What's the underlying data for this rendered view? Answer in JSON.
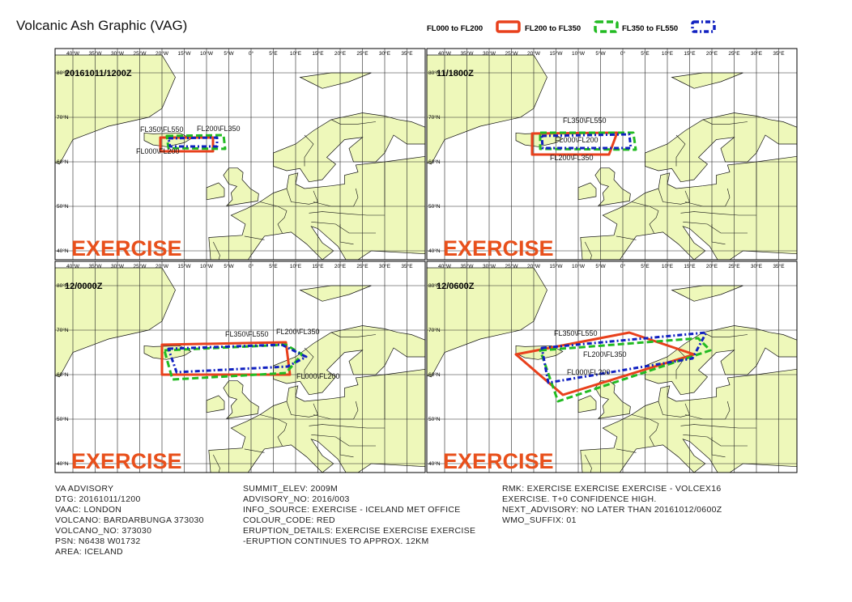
{
  "header": {
    "title": "Volcanic Ash Graphic (VAG)"
  },
  "legend": [
    {
      "label": "FL000 to FL200",
      "color": "#e8401c"
    },
    {
      "label": "FL200 to FL350",
      "color": "#22bb22"
    },
    {
      "label": "FL350 to FL550",
      "color": "#1020c0"
    }
  ],
  "grid": {
    "lon_labels": [
      "40°W",
      "35°W",
      "30°W",
      "25°W",
      "20°W",
      "15°W",
      "10°W",
      "5°W",
      "0°",
      "5°E",
      "10°E",
      "15°E",
      "20°E",
      "25°E",
      "30°E",
      "35°E"
    ],
    "lat_labels": [
      "80°N",
      "70°N",
      "60°N",
      "50°N",
      "40°N"
    ]
  },
  "panels": [
    {
      "time": "20161011/1200Z",
      "watermark": "EXERCISE",
      "labels": [
        "FL000\\FL200",
        "FL200\\FL350",
        "FL350\\FL550"
      ]
    },
    {
      "time": "11/1800Z",
      "watermark": "EXERCISE",
      "labels": [
        "FL000\\FL200",
        "FL200\\FL350",
        "FL350\\FL550"
      ]
    },
    {
      "time": "12/0000Z",
      "watermark": "EXERCISE",
      "labels": [
        "FL000\\FL200",
        "FL200\\FL350",
        "FL350\\FL550"
      ]
    },
    {
      "time": "12/0600Z",
      "watermark": "EXERCISE",
      "labels": [
        "FL000\\FL200",
        "FL200\\FL350",
        "FL350\\FL550"
      ]
    }
  ],
  "advisory": {
    "columns": [
      [
        "VA ADVISORY",
        "DTG: 20161011/1200",
        "VAAC: LONDON",
        "VOLCANO: BARDARBUNGA 373030",
        "VOLCANO_NO: 373030",
        "PSN: N6438 W01732",
        "AREA: ICELAND"
      ],
      [
        "SUMMIT_ELEV: 2009M",
        "ADVISORY_NO: 2016/003",
        "INFO_SOURCE: EXERCISE - ICELAND MET OFFICE",
        "COLOUR_CODE: RED",
        "ERUPTION_DETAILS: EXERCISE EXERCISE EXERCISE",
        "-ERUPTION CONTINUES TO APPROX. 12KM"
      ],
      [
        "RMK: EXERCISE EXERCISE EXERCISE - VOLCEX16",
        "EXERCISE. T+0 CONFIDENCE HIGH.",
        "NEXT_ADVISORY: NO LATER THAN 20161012/0600Z",
        "WMO_SUFFIX: 01"
      ]
    ]
  }
}
